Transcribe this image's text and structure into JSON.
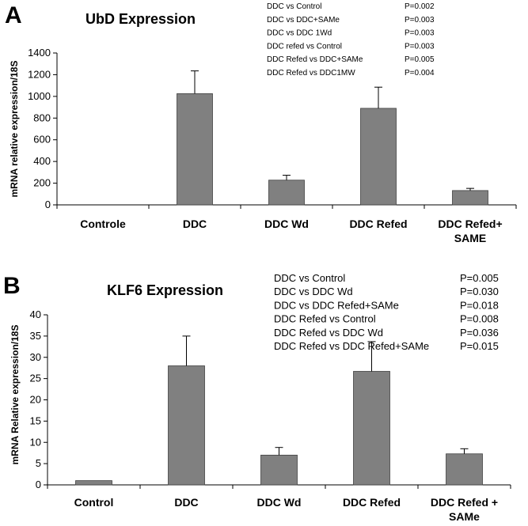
{
  "chart_data": [
    {
      "panel": "A",
      "type": "bar",
      "title": "UbD Expression",
      "ylabel": "mRNA relative expression/18S",
      "categories": [
        [
          "Controle"
        ],
        [
          "DDC"
        ],
        [
          "DDC Wd"
        ],
        [
          "DDC Refed"
        ],
        [
          "DDC Refed+",
          "SAME"
        ]
      ],
      "values": [
        0,
        1025,
        228,
        890,
        132
      ],
      "errors": [
        0,
        210,
        45,
        195,
        20
      ],
      "ylim": [
        0,
        1400
      ],
      "yticks": [
        0,
        200,
        400,
        600,
        800,
        1000,
        1200,
        1400
      ],
      "annotations": [
        {
          "label": "DDC vs Control",
          "p": "P=0.002"
        },
        {
          "label": "DDC vs DDC+SAMe",
          "p": "P=0.003"
        },
        {
          "label": "DDC vs DDC 1Wd",
          "p": "P=0.003"
        },
        {
          "label": "DDC refed vs Control",
          "p": "P=0.003"
        },
        {
          "label": "DDC Refed vs DDC+SAMe",
          "p": "P=0.005"
        },
        {
          "label": "DDC Refed vs DDC1MW",
          "p": "P=0.004"
        }
      ]
    },
    {
      "panel": "B",
      "type": "bar",
      "title": "KLF6 Expression",
      "ylabel": "mRNA Relative expression/18S",
      "categories": [
        [
          "Control"
        ],
        [
          "DDC"
        ],
        [
          "DDC Wd"
        ],
        [
          "DDC Refed"
        ],
        [
          "DDC Refed +",
          "SAMe"
        ]
      ],
      "values": [
        1,
        28,
        7,
        26.7,
        7.3
      ],
      "errors": [
        0,
        7,
        1.8,
        7,
        1.2
      ],
      "ylim": [
        0,
        40
      ],
      "yticks": [
        0,
        5,
        10,
        15,
        20,
        25,
        30,
        35,
        40
      ],
      "annotations": [
        {
          "label": "DDC vs Control",
          "p": "P=0.005"
        },
        {
          "label": "DDC vs DDC Wd",
          "p": "P=0.030"
        },
        {
          "label": "DDC vs DDC Refed+SAMe",
          "p": "P=0.018"
        },
        {
          "label": "DDC Refed vs Control",
          "p": "P=0.008"
        },
        {
          "label": "DDC Refed vs DDC Wd",
          "p": "P=0.036"
        },
        {
          "label": "DDC Refed vs DDC Refed+SAMe",
          "p": "P=0.015"
        }
      ]
    }
  ]
}
